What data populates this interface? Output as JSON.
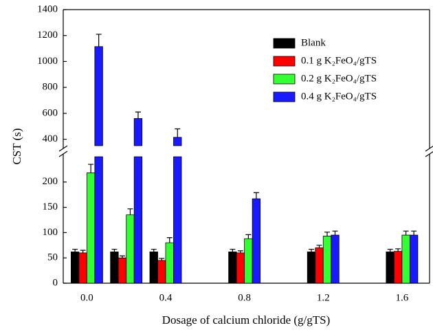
{
  "chart_data": {
    "type": "bar",
    "x_label": "Dosage of calcium chloride (g/gTS)",
    "y_label": "CST (s)",
    "x": [
      0,
      0.2,
      0.4,
      0.8,
      1.2,
      1.6
    ],
    "xlim": [
      -0.12,
      1.74
    ],
    "xticks": [
      {
        "value": 0,
        "label": "0.0"
      },
      0.4,
      0.8,
      1.2,
      1.6
    ],
    "ylim": [
      0,
      1400
    ],
    "ybreak": [
      250,
      350
    ],
    "yticks": [
      0,
      50,
      100,
      150,
      200,
      400,
      600,
      800,
      1000,
      1200,
      1400
    ],
    "legend": "upper right",
    "series": [
      {
        "name": "Blank",
        "color": "#000000",
        "values": [
          62,
          62,
          62,
          62,
          62,
          62
        ],
        "errors": [
          5,
          5,
          5,
          5,
          5,
          5
        ]
      },
      {
        "name": "0.1 g K₂FeO₄/gTS",
        "color": "#ff0000",
        "values": [
          60,
          50,
          45,
          60,
          70,
          63
        ],
        "errors": [
          5,
          4,
          4,
          4,
          5,
          5
        ]
      },
      {
        "name": "0.2 g K₂FeO₄/gTS",
        "color": "#33ff33",
        "values": [
          218,
          135,
          80,
          88,
          93,
          95
        ],
        "errors": [
          17,
          12,
          10,
          8,
          8,
          8
        ]
      },
      {
        "name": "0.4 g K₂FeO₄/gTS",
        "color": "#1a1aff",
        "values": [
          1115,
          560,
          415,
          167,
          95,
          95
        ],
        "errors": [
          95,
          50,
          65,
          12,
          8,
          8
        ]
      }
    ]
  }
}
